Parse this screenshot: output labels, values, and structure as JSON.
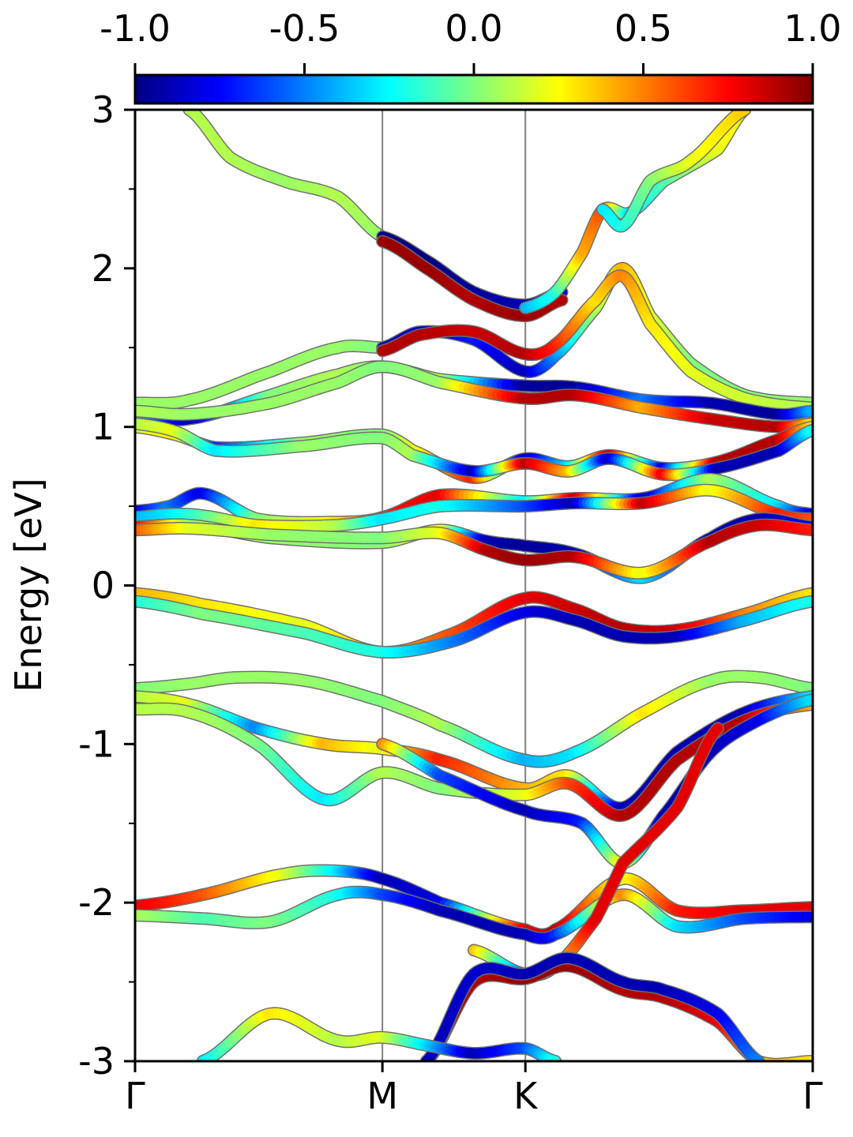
{
  "chart_data": {
    "type": "line",
    "title": "",
    "ylabel": "Energy [eV]",
    "xlabel": "",
    "ylim": [
      -3,
      3
    ],
    "yticks": [
      "3",
      "2",
      "1",
      "0",
      "-1",
      "-2",
      "-3"
    ],
    "ytick_values": [
      3,
      2,
      1,
      0,
      -1,
      -2,
      -3
    ],
    "yminor_values": [
      2.5,
      1.5,
      0.5,
      -0.5,
      -1.5,
      -2.5
    ],
    "kpath": [
      {
        "label": "Γ",
        "x": 0.0
      },
      {
        "label": "M",
        "x": 0.365
      },
      {
        "label": "K",
        "x": 0.576
      },
      {
        "label": "Γ",
        "x": 1.0
      }
    ],
    "colorbar": {
      "colormap": "jet",
      "range": [
        -1.0,
        1.0
      ],
      "ticks": [
        "-1.0",
        "-0.5",
        "0.0",
        "0.5",
        "1.0"
      ],
      "tick_values": [
        -1.0,
        -0.5,
        0.0,
        0.5,
        1.0
      ]
    },
    "series": [
      {
        "x": [
          0.08,
          0.14,
          0.22,
          0.3,
          0.365
        ],
        "y": [
          3.0,
          2.7,
          2.55,
          2.45,
          2.2
        ],
        "c": [
          0.1,
          0.1,
          0.05,
          0.1,
          0.05
        ]
      },
      {
        "x": [
          0.365,
          0.43,
          0.5,
          0.576,
          0.63
        ],
        "y": [
          2.2,
          2.05,
          1.85,
          1.77,
          1.85
        ],
        "c": [
          -1.0,
          -1.0,
          -0.95,
          -0.9,
          -0.8
        ]
      },
      {
        "x": [
          0.365,
          0.43,
          0.5,
          0.576,
          0.63
        ],
        "y": [
          2.17,
          2.0,
          1.8,
          1.7,
          1.8
        ],
        "c": [
          0.95,
          0.95,
          0.9,
          0.95,
          0.9
        ]
      },
      {
        "x": [
          0.576,
          0.62,
          0.66,
          0.69,
          0.73,
          0.78,
          0.86,
          0.9
        ],
        "y": [
          1.75,
          1.85,
          2.1,
          2.37,
          2.35,
          2.55,
          2.75,
          3.0
        ],
        "c": [
          -0.4,
          -0.2,
          0.4,
          0.6,
          -0.3,
          -0.1,
          0.2,
          0.3
        ]
      },
      {
        "x": [
          0.69,
          0.72,
          0.76,
          0.82,
          0.9
        ],
        "y": [
          2.37,
          2.27,
          2.55,
          2.68,
          3.0
        ],
        "c": [
          -0.3,
          -0.2,
          0.0,
          0.2,
          0.35
        ]
      },
      {
        "x": [
          0.0,
          0.08,
          0.2,
          0.3,
          0.365
        ],
        "y": [
          1.15,
          1.17,
          1.35,
          1.5,
          1.5
        ],
        "c": [
          0.05,
          0.05,
          0.05,
          0.05,
          0.0
        ]
      },
      {
        "x": [
          0.365,
          0.42,
          0.5,
          0.576,
          0.62,
          0.68,
          0.72,
          0.76,
          0.82,
          0.9,
          1.0
        ],
        "y": [
          1.5,
          1.6,
          1.55,
          1.35,
          1.45,
          1.75,
          2.0,
          1.7,
          1.4,
          1.2,
          1.15
        ],
        "c": [
          -0.9,
          -0.85,
          -0.7,
          -0.9,
          -0.5,
          0.1,
          0.4,
          0.2,
          0.0,
          0.0,
          0.05
        ]
      },
      {
        "x": [
          0.365,
          0.42,
          0.5,
          0.576,
          0.62,
          0.68,
          0.72,
          0.76,
          0.82,
          0.9,
          1.0
        ],
        "y": [
          1.48,
          1.58,
          1.6,
          1.46,
          1.52,
          1.8,
          1.95,
          1.65,
          1.35,
          1.18,
          1.12
        ],
        "c": [
          0.9,
          0.9,
          0.85,
          0.9,
          0.7,
          0.3,
          0.5,
          0.3,
          0.2,
          0.15,
          0.1
        ]
      },
      {
        "x": [
          0.0,
          0.08,
          0.2,
          0.3,
          0.365,
          0.45,
          0.576,
          0.65,
          0.75,
          0.85,
          0.95,
          1.0
        ],
        "y": [
          1.07,
          1.05,
          1.2,
          1.33,
          1.38,
          1.3,
          1.26,
          1.25,
          1.17,
          1.15,
          1.08,
          1.1
        ],
        "c": [
          -0.3,
          -0.9,
          0.0,
          0.1,
          0.0,
          0.1,
          -0.95,
          -0.95,
          -0.5,
          -0.9,
          -0.95,
          -0.4
        ]
      },
      {
        "x": [
          0.0,
          0.08,
          0.2,
          0.3,
          0.365,
          0.45,
          0.576,
          0.65,
          0.75,
          0.85,
          0.95,
          1.0
        ],
        "y": [
          1.1,
          1.08,
          1.15,
          1.28,
          1.38,
          1.28,
          1.18,
          1.2,
          1.12,
          1.05,
          1.0,
          1.02
        ],
        "c": [
          0.1,
          0.05,
          0.05,
          0.05,
          0.0,
          0.05,
          0.9,
          0.9,
          0.4,
          0.85,
          0.9,
          0.3
        ]
      },
      {
        "x": [
          0.0,
          0.06,
          0.12,
          0.25,
          0.365,
          0.41,
          0.5,
          0.576,
          0.64,
          0.7,
          0.78,
          0.86,
          0.95,
          1.0
        ],
        "y": [
          1.0,
          0.95,
          0.87,
          0.9,
          0.95,
          0.85,
          0.68,
          0.8,
          0.75,
          0.82,
          0.74,
          0.78,
          0.92,
          1.0
        ],
        "c": [
          0.15,
          0.3,
          -0.7,
          0.05,
          0.0,
          0.2,
          0.7,
          -0.9,
          -0.3,
          0.9,
          -0.8,
          0.9,
          0.9,
          0.3
        ]
      },
      {
        "x": [
          0.0,
          0.06,
          0.12,
          0.25,
          0.365,
          0.41,
          0.5,
          0.576,
          0.64,
          0.7,
          0.78,
          0.86,
          0.95,
          1.0
        ],
        "y": [
          1.02,
          0.97,
          0.85,
          0.88,
          0.93,
          0.82,
          0.72,
          0.77,
          0.72,
          0.8,
          0.7,
          0.74,
          0.85,
          0.98
        ],
        "c": [
          0.1,
          0.2,
          -0.3,
          0.05,
          0.0,
          0.1,
          -0.9,
          0.9,
          0.4,
          -0.9,
          0.8,
          -0.9,
          -0.9,
          -0.2
        ]
      },
      {
        "x": [
          0.0,
          0.05,
          0.1,
          0.18,
          0.3,
          0.365,
          0.45,
          0.576,
          0.65,
          0.75,
          0.85,
          0.95,
          1.0
        ],
        "y": [
          0.47,
          0.5,
          0.58,
          0.42,
          0.4,
          0.43,
          0.57,
          0.53,
          0.55,
          0.55,
          0.67,
          0.5,
          0.45
        ],
        "c": [
          -0.8,
          -0.5,
          -0.8,
          0.0,
          0.3,
          0.7,
          0.8,
          -0.3,
          0.9,
          -0.9,
          0.1,
          -0.3,
          -0.8
        ]
      },
      {
        "x": [
          0.0,
          0.05,
          0.1,
          0.18,
          0.3,
          0.365,
          0.45,
          0.576,
          0.65,
          0.75,
          0.85,
          0.95,
          1.0
        ],
        "y": [
          0.43,
          0.45,
          0.44,
          0.38,
          0.38,
          0.42,
          0.5,
          0.5,
          0.52,
          0.52,
          0.6,
          0.45,
          0.42
        ],
        "c": [
          -0.4,
          -0.3,
          -0.1,
          0.3,
          0.1,
          -0.3,
          -0.2,
          -0.6,
          -0.9,
          0.9,
          0.2,
          0.7,
          0.6
        ]
      },
      {
        "x": [
          0.0,
          0.08,
          0.2,
          0.365,
          0.45,
          0.52,
          0.576,
          0.65,
          0.75,
          0.85,
          0.92,
          1.0
        ],
        "y": [
          0.37,
          0.38,
          0.3,
          0.27,
          0.35,
          0.28,
          0.25,
          0.2,
          0.05,
          0.3,
          0.42,
          0.37
        ],
        "c": [
          0.8,
          0.05,
          0.05,
          0.0,
          0.3,
          -0.9,
          -0.95,
          -0.9,
          -0.3,
          -0.9,
          -0.9,
          -0.8
        ]
      },
      {
        "x": [
          0.0,
          0.08,
          0.2,
          0.365,
          0.45,
          0.52,
          0.576,
          0.65,
          0.75,
          0.85,
          0.92,
          1.0
        ],
        "y": [
          0.35,
          0.36,
          0.32,
          0.3,
          0.33,
          0.22,
          0.16,
          0.18,
          0.08,
          0.28,
          0.38,
          0.35
        ],
        "c": [
          0.6,
          0.2,
          0.05,
          0.0,
          0.2,
          0.9,
          0.95,
          0.9,
          0.2,
          0.9,
          0.85,
          0.7
        ]
      },
      {
        "x": [
          0.0,
          0.1,
          0.25,
          0.365,
          0.47,
          0.576,
          0.65,
          0.72,
          0.8,
          0.9,
          1.0
        ],
        "y": [
          -0.05,
          -0.12,
          -0.25,
          -0.42,
          -0.3,
          -0.08,
          -0.15,
          -0.27,
          -0.28,
          -0.18,
          -0.05
        ],
        "c": [
          0.4,
          0.3,
          0.2,
          0.4,
          0.6,
          0.8,
          0.85,
          0.9,
          0.85,
          0.5,
          0.3
        ]
      },
      {
        "x": [
          0.0,
          0.1,
          0.25,
          0.365,
          0.47,
          0.576,
          0.65,
          0.72,
          0.8,
          0.9,
          1.0
        ],
        "y": [
          -0.1,
          -0.18,
          -0.3,
          -0.42,
          -0.35,
          -0.17,
          -0.22,
          -0.32,
          -0.32,
          -0.22,
          -0.1
        ],
        "c": [
          -0.2,
          0.0,
          -0.1,
          -0.2,
          -0.5,
          -0.8,
          -0.9,
          -0.9,
          -0.9,
          -0.4,
          -0.2
        ]
      },
      {
        "x": [
          0.0,
          0.08,
          0.15,
          0.25,
          0.365,
          0.45,
          0.576,
          0.65,
          0.75,
          0.85,
          0.92,
          1.0
        ],
        "y": [
          -0.65,
          -0.62,
          -0.58,
          -0.6,
          -0.73,
          -0.88,
          -1.1,
          -1.05,
          -0.8,
          -0.6,
          -0.58,
          -0.65
        ],
        "c": [
          0.0,
          0.05,
          0.05,
          0.05,
          0.0,
          0.1,
          -0.4,
          -0.3,
          0.3,
          0.05,
          0.05,
          0.0
        ]
      },
      {
        "x": [
          0.0,
          0.08,
          0.18,
          0.28,
          0.365,
          0.45,
          0.576,
          0.64,
          0.72,
          0.8,
          0.9,
          1.0
        ],
        "y": [
          -0.7,
          -0.75,
          -0.9,
          -1.0,
          -1.03,
          -1.1,
          -1.28,
          -1.2,
          -1.4,
          -1.05,
          -0.8,
          -0.7
        ],
        "c": [
          0.1,
          0.2,
          -0.5,
          0.4,
          0.2,
          0.7,
          0.4,
          0.3,
          -0.9,
          -0.9,
          -0.9,
          -0.3
        ]
      },
      {
        "x": [
          0.0,
          0.08,
          0.18,
          0.28,
          0.365,
          0.45,
          0.576,
          0.64,
          0.72,
          0.8,
          0.9,
          1.0
        ],
        "y": [
          -0.78,
          -0.8,
          -1.0,
          -1.35,
          -1.18,
          -1.28,
          -1.32,
          -1.25,
          -1.45,
          -1.1,
          -0.85,
          -0.75
        ],
        "c": [
          0.1,
          0.1,
          0.0,
          -0.3,
          0.1,
          0.0,
          0.2,
          0.6,
          0.9,
          0.9,
          0.9,
          0.4
        ]
      },
      {
        "x": [
          0.365,
          0.45,
          0.576,
          0.66,
          0.72,
          0.78,
          0.85,
          0.92,
          1.0
        ],
        "y": [
          -1.0,
          -1.2,
          -1.42,
          -1.5,
          -1.75,
          -1.45,
          -1.05,
          -0.85,
          -0.72
        ],
        "c": [
          0.5,
          -0.6,
          -0.9,
          -0.7,
          0.3,
          -0.9,
          -0.9,
          -0.8,
          -0.3
        ]
      },
      {
        "x": [
          0.0,
          0.1,
          0.22,
          0.3,
          0.365,
          0.45,
          0.576,
          0.62,
          0.72,
          0.8,
          0.9,
          1.0
        ],
        "y": [
          -2.02,
          -1.95,
          -1.82,
          -1.8,
          -1.85,
          -2.0,
          -2.17,
          -2.17,
          -1.85,
          -2.05,
          -2.05,
          -2.03
        ],
        "c": [
          0.8,
          0.6,
          0.2,
          -0.3,
          -0.9,
          -0.8,
          0.8,
          0.9,
          0.2,
          0.7,
          0.8,
          0.8
        ]
      },
      {
        "x": [
          0.0,
          0.1,
          0.2,
          0.3,
          0.365,
          0.45,
          0.576,
          0.62,
          0.72,
          0.8,
          0.9,
          1.0
        ],
        "y": [
          -2.08,
          -2.1,
          -2.12,
          -1.95,
          -1.95,
          -2.05,
          -2.2,
          -2.2,
          -1.95,
          -2.15,
          -2.1,
          -2.09
        ],
        "c": [
          0.1,
          -0.1,
          0.0,
          -0.2,
          -0.6,
          -0.9,
          -0.9,
          -0.7,
          0.5,
          -0.3,
          -0.6,
          -0.8
        ]
      },
      {
        "x": [
          0.5,
          0.576,
          0.62,
          0.68,
          0.72,
          0.8,
          0.86
        ],
        "y": [
          -2.3,
          -2.45,
          -2.4,
          -2.1,
          -1.75,
          -1.4,
          -0.9
        ],
        "c": [
          0.4,
          -0.6,
          0.3,
          0.8,
          0.8,
          0.8,
          0.8
        ]
      },
      {
        "x": [
          0.43,
          0.5,
          0.576,
          0.64,
          0.72,
          0.78,
          0.86,
          0.92,
          1.0
        ],
        "y": [
          -3.0,
          -2.5,
          -2.48,
          -2.4,
          -2.55,
          -2.6,
          -2.75,
          -3.0,
          -3.0
        ],
        "c": [
          0.9,
          0.9,
          0.95,
          0.95,
          0.9,
          0.9,
          0.8,
          0.4,
          0.3
        ]
      },
      {
        "x": [
          0.43,
          0.5,
          0.576,
          0.64,
          0.72,
          0.78,
          0.86,
          0.92
        ],
        "y": [
          -3.0,
          -2.45,
          -2.45,
          -2.35,
          -2.5,
          -2.55,
          -2.7,
          -3.0
        ],
        "c": [
          -0.9,
          -0.85,
          -0.9,
          -0.9,
          -0.9,
          -0.9,
          -0.8,
          -0.5
        ]
      },
      {
        "x": [
          0.1,
          0.2,
          0.3,
          0.365,
          0.43,
          0.5,
          0.576,
          0.62
        ],
        "y": [
          -3.0,
          -2.7,
          -2.87,
          -2.85,
          -2.9,
          -2.95,
          -2.92,
          -3.0
        ],
        "c": [
          -0.3,
          0.3,
          0.1,
          0.2,
          -0.3,
          -0.9,
          -0.6,
          -0.2
        ]
      }
    ]
  }
}
